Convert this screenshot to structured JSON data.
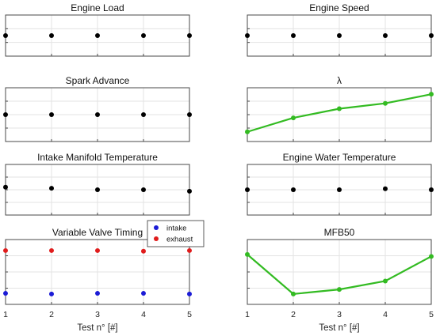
{
  "chart_data": [
    {
      "type": "scatter",
      "title": "Engine Load",
      "x": [
        1,
        2,
        3,
        4,
        5
      ],
      "xlim": [
        1,
        5
      ],
      "ylim": [
        0,
        1
      ],
      "grid": true,
      "series": [
        {
          "values": [
            0.5,
            0.5,
            0.5,
            0.5,
            0.5
          ],
          "color": "#000000",
          "line": false
        }
      ]
    },
    {
      "type": "scatter",
      "title": "Engine Speed",
      "x": [
        1,
        2,
        3,
        4,
        5
      ],
      "xlim": [
        1,
        5
      ],
      "ylim": [
        0,
        1
      ],
      "grid": true,
      "series": [
        {
          "values": [
            0.5,
            0.5,
            0.5,
            0.5,
            0.5
          ],
          "color": "#000000",
          "line": false
        }
      ]
    },
    {
      "type": "scatter",
      "title": "Spark Advance",
      "x": [
        1,
        2,
        3,
        4,
        5
      ],
      "xlim": [
        1,
        5
      ],
      "ylim": [
        0,
        1
      ],
      "grid": true,
      "series": [
        {
          "values": [
            0.5,
            0.5,
            0.5,
            0.5,
            0.5
          ],
          "color": "#000000",
          "line": false
        }
      ]
    },
    {
      "type": "line",
      "title": "λ",
      "x": [
        1,
        2,
        3,
        4,
        5
      ],
      "xlim": [
        1,
        5
      ],
      "ylim": [
        0,
        1
      ],
      "grid": true,
      "series": [
        {
          "values": [
            0.18,
            0.44,
            0.61,
            0.71,
            0.88
          ],
          "color": "#33bb22",
          "line": true
        }
      ]
    },
    {
      "type": "scatter",
      "title": "Intake Manifold Temperature",
      "x": [
        1,
        2,
        3,
        4,
        5
      ],
      "xlim": [
        1,
        5
      ],
      "ylim": [
        0,
        1
      ],
      "grid": true,
      "series": [
        {
          "values": [
            0.55,
            0.53,
            0.5,
            0.5,
            0.47
          ],
          "color": "#000000",
          "line": false
        }
      ]
    },
    {
      "type": "scatter",
      "title": "Engine Water Temperature",
      "x": [
        1,
        2,
        3,
        4,
        5
      ],
      "xlim": [
        1,
        5
      ],
      "ylim": [
        0,
        1
      ],
      "grid": true,
      "series": [
        {
          "values": [
            0.5,
            0.5,
            0.5,
            0.52,
            0.5
          ],
          "color": "#000000",
          "line": false
        }
      ]
    },
    {
      "type": "scatter",
      "title": "Variable Valve Timing",
      "x": [
        1,
        2,
        3,
        4,
        5
      ],
      "xlim": [
        1,
        5
      ],
      "ylim": [
        0,
        1
      ],
      "grid": true,
      "xtick_labels": [
        "1",
        "2",
        "3",
        "4",
        "5"
      ],
      "xlabel": "Test n° [#]",
      "legend": {
        "position": "top-right",
        "entries": [
          "intake",
          "exhaust"
        ]
      },
      "series": [
        {
          "name": "intake",
          "values": [
            0.17,
            0.16,
            0.17,
            0.17,
            0.16
          ],
          "color": "#1c1cd6",
          "line": false
        },
        {
          "name": "exhaust",
          "values": [
            0.83,
            0.83,
            0.83,
            0.82,
            0.83
          ],
          "color": "#e01c1c",
          "line": false
        }
      ]
    },
    {
      "type": "line",
      "title": "MFB50",
      "x": [
        1,
        2,
        3,
        4,
        5
      ],
      "xlim": [
        1,
        5
      ],
      "ylim": [
        0,
        1
      ],
      "grid": true,
      "xtick_labels": [
        "1",
        "2",
        "3",
        "4",
        "5"
      ],
      "xlabel": "Test n° [#]",
      "series": [
        {
          "values": [
            0.77,
            0.16,
            0.23,
            0.36,
            0.74
          ],
          "color": "#33bb22",
          "line": true
        }
      ]
    }
  ]
}
